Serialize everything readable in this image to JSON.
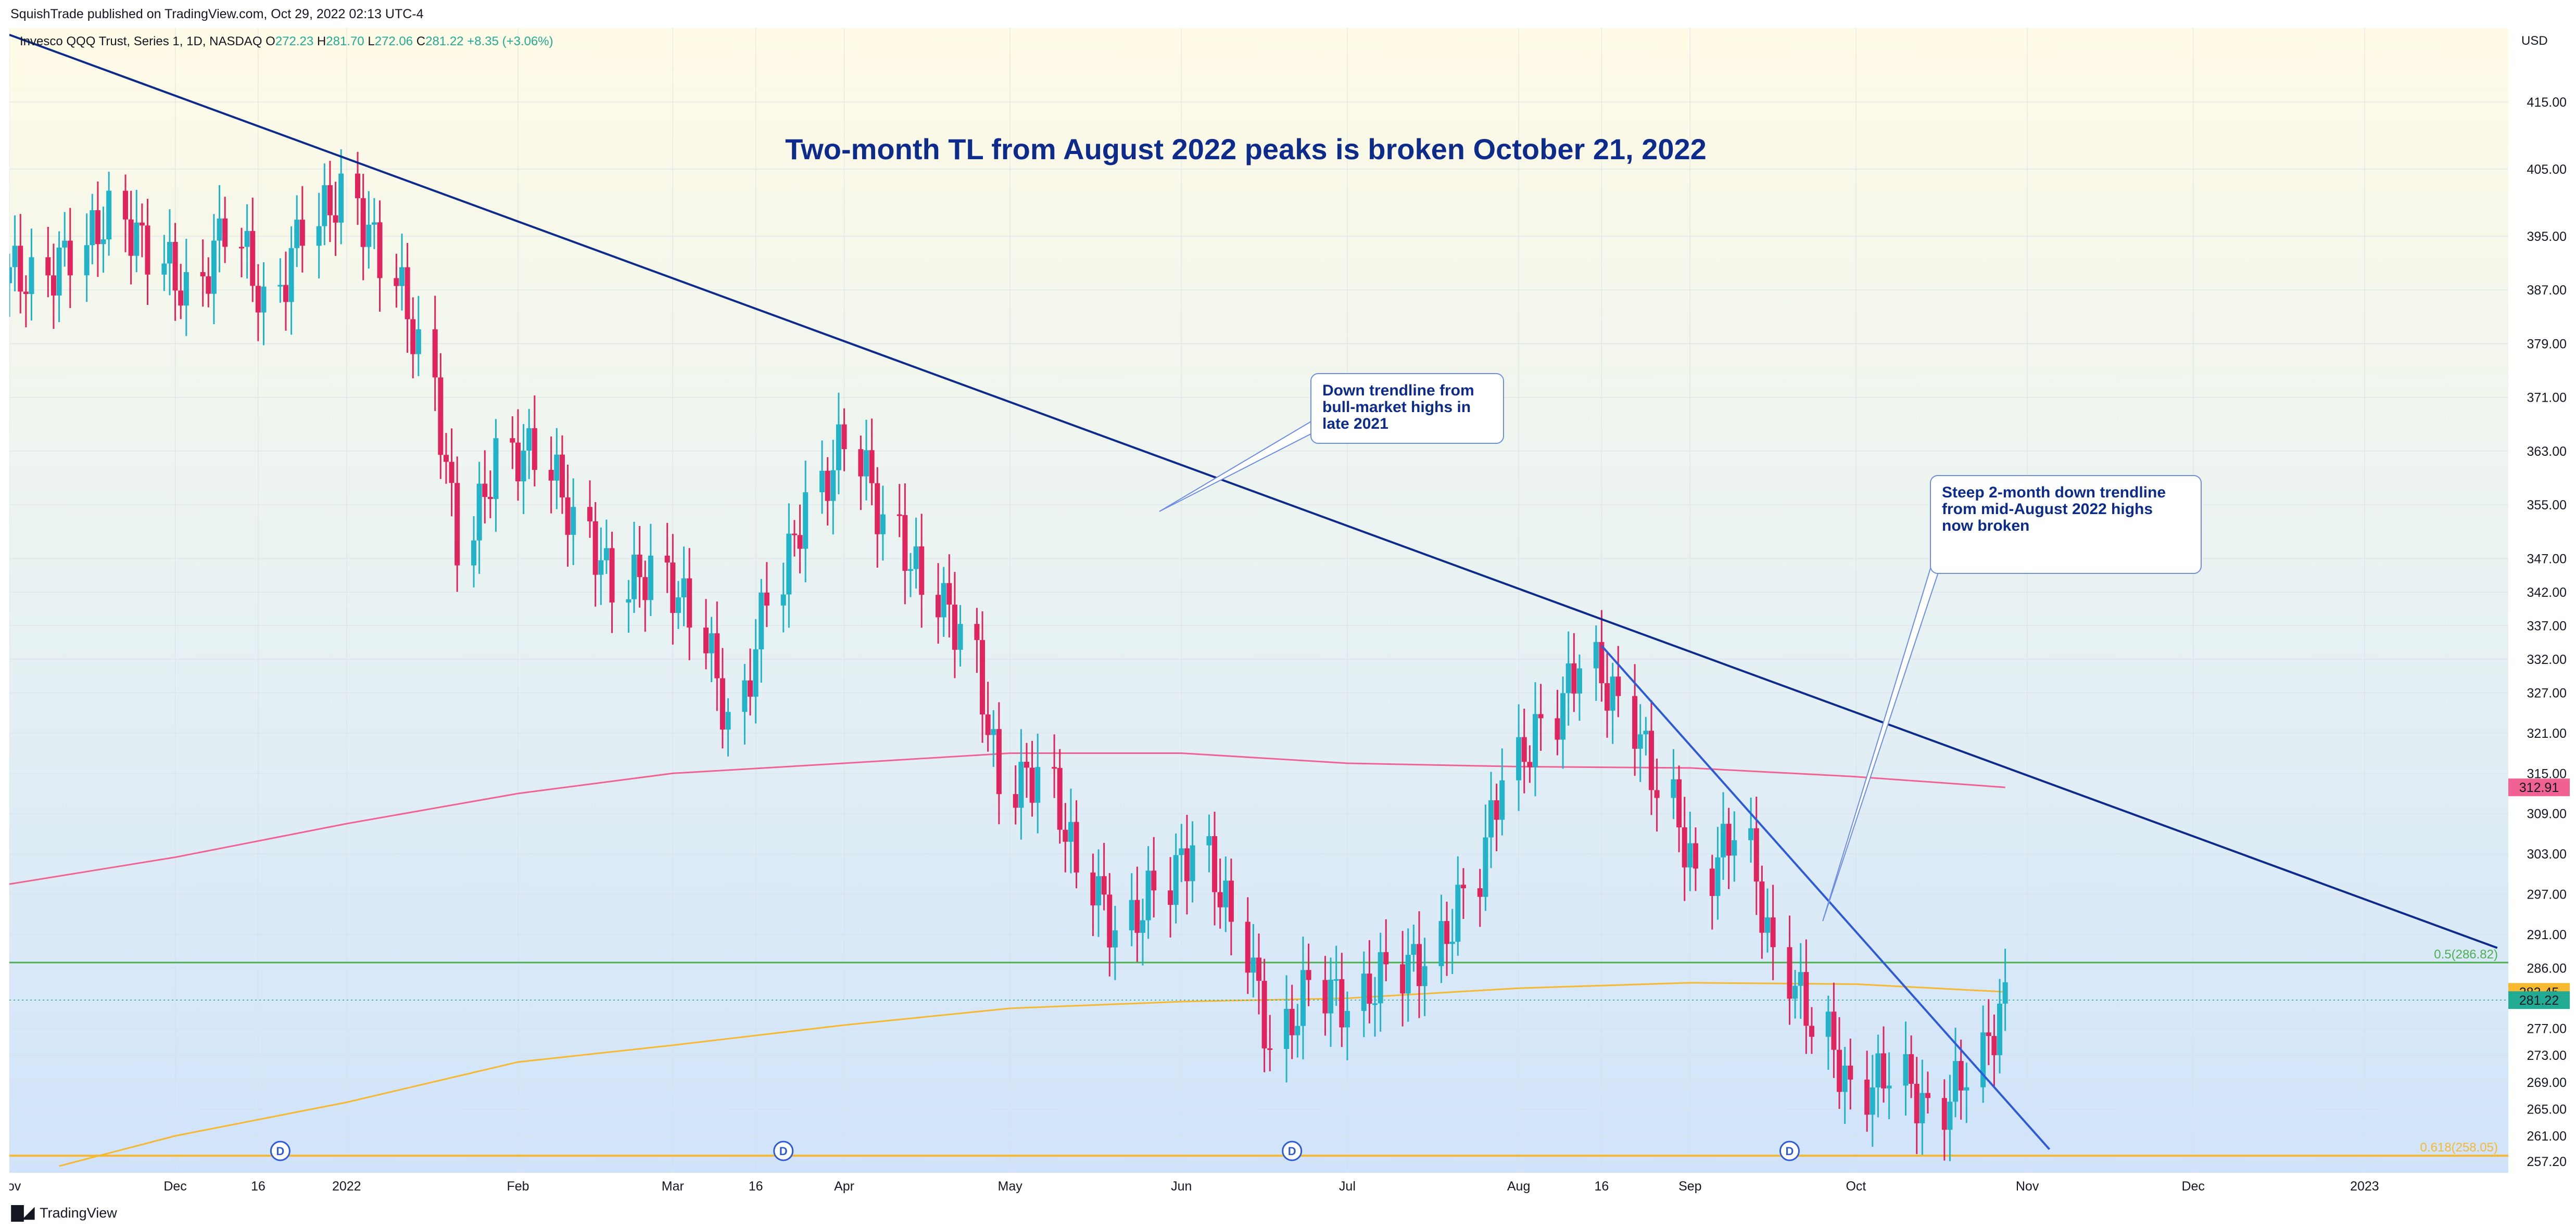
{
  "header": {
    "published": "SquishTrade published on TradingView.com, Oct 29, 2022 02:13 UTC-4"
  },
  "symbol": {
    "name": "Invesco QQQ Trust, Series 1, 1D, NASDAQ",
    "o_label": "O",
    "o_value": "272.23",
    "h_label": "H",
    "h_value": "281.70",
    "l_label": "L",
    "l_value": "272.06",
    "c_label": "C",
    "c_value": "281.22",
    "change": "+8.35 (+3.06%)"
  },
  "footer": {
    "brand": "TradingView",
    "logo_icon": "tradingview-logo-icon"
  },
  "chart_data": {
    "type": "candlestick",
    "title": "Two-month TL from August 2022 peaks is broken October 21, 2022",
    "currency": "USD",
    "y_ticks": [
      415,
      405,
      395,
      387,
      379,
      371,
      363,
      355,
      347,
      342,
      337,
      332,
      327,
      321,
      315,
      309,
      303,
      297,
      291,
      286,
      277,
      273,
      269,
      265,
      261,
      257.2
    ],
    "y_tick_labels": [
      "415.00",
      "405.00",
      "395.00",
      "387.00",
      "379.00",
      "371.00",
      "363.00",
      "355.00",
      "347.00",
      "342.00",
      "337.00",
      "332.00",
      "327.00",
      "321.00",
      "315.00",
      "309.00",
      "303.00",
      "297.00",
      "291.00",
      "286.00",
      "277.00",
      "273.00",
      "269.00",
      "265.00",
      "261.00",
      "257.20"
    ],
    "y_range": [
      255.5,
      426
    ],
    "x_range": [
      "2021-11-01",
      "2023-01-27"
    ],
    "x_ticks": [
      {
        "date": "2021-11-01",
        "label": "Nov"
      },
      {
        "date": "2021-12-01",
        "label": "Dec"
      },
      {
        "date": "2021-12-16",
        "label": "16"
      },
      {
        "date": "2022-01-01",
        "label": "2022"
      },
      {
        "date": "2022-02-01",
        "label": "Feb"
      },
      {
        "date": "2022-03-01",
        "label": "Mar"
      },
      {
        "date": "2022-03-16",
        "label": "16"
      },
      {
        "date": "2022-04-01",
        "label": "Apr"
      },
      {
        "date": "2022-05-01",
        "label": "May"
      },
      {
        "date": "2022-06-01",
        "label": "Jun"
      },
      {
        "date": "2022-07-01",
        "label": "Jul"
      },
      {
        "date": "2022-08-01",
        "label": "Aug"
      },
      {
        "date": "2022-08-16",
        "label": "16"
      },
      {
        "date": "2022-09-01",
        "label": "Sep"
      },
      {
        "date": "2022-10-01",
        "label": "Oct"
      },
      {
        "date": "2022-11-01",
        "label": "Nov"
      },
      {
        "date": "2022-12-01",
        "label": "Dec"
      },
      {
        "date": "2023-01-01",
        "label": "2023"
      }
    ],
    "dividend_markers": {
      "label": "D",
      "dates": [
        "2021-12-20",
        "2022-03-21",
        "2022-06-21",
        "2022-09-19"
      ]
    },
    "price_badges": [
      {
        "label": "312.91",
        "value": 312.91,
        "color": "#f06292"
      },
      {
        "label": "282.45",
        "value": 282.45,
        "color": "#f5b82e"
      },
      {
        "label": "281.22",
        "value": 281.22,
        "color": "#22ab94"
      }
    ],
    "fib_levels": [
      {
        "label": "0.5(286.82)",
        "value": 286.82,
        "color": "#4caf50"
      },
      {
        "label": "0.618(258.05)",
        "value": 258.05,
        "color": "#f5b82e"
      }
    ],
    "trendlines": [
      {
        "name": "Down trendline from bull-market highs",
        "color": "#0d2b8a",
        "points": [
          [
            "2021-11-01",
            425
          ],
          [
            "2023-01-25",
            289
          ]
        ]
      },
      {
        "name": "Steep 2-month down trendline",
        "color": "#2d5bd8",
        "points": [
          [
            "2022-08-16",
            334
          ],
          [
            "2022-11-05",
            259
          ]
        ]
      }
    ],
    "moving_averages": [
      {
        "color": "#f06292",
        "points": [
          [
            "2021-11-01",
            298.5
          ],
          [
            "2021-12-01",
            302.5
          ],
          [
            "2022-01-01",
            307.5
          ],
          [
            "2022-02-01",
            312
          ],
          [
            "2022-03-01",
            315
          ],
          [
            "2022-04-01",
            316.5
          ],
          [
            "2022-05-01",
            318
          ],
          [
            "2022-06-01",
            318
          ],
          [
            "2022-07-01",
            316.5
          ],
          [
            "2022-08-01",
            316
          ],
          [
            "2022-09-01",
            315.8
          ],
          [
            "2022-10-01",
            314.5
          ],
          [
            "2022-10-28",
            312.91
          ]
        ]
      },
      {
        "color": "#f5b82e",
        "points": [
          [
            "2021-11-10",
            256.5
          ],
          [
            "2021-12-01",
            261
          ],
          [
            "2022-01-01",
            266
          ],
          [
            "2022-02-01",
            272
          ],
          [
            "2022-03-01",
            274.5
          ],
          [
            "2022-04-01",
            277.5
          ],
          [
            "2022-05-01",
            280
          ],
          [
            "2022-06-01",
            281
          ],
          [
            "2022-07-01",
            281.5
          ],
          [
            "2022-08-01",
            283
          ],
          [
            "2022-09-01",
            283.8
          ],
          [
            "2022-10-01",
            283.6
          ],
          [
            "2022-10-28",
            282.45
          ]
        ]
      }
    ],
    "close_line": 281.22,
    "annotations": [
      {
        "text_lines": [
          "Down trendline from",
          "bull-market highs in",
          "late 2021"
        ],
        "pointer": [
          "2022-05-28",
          354
        ]
      },
      {
        "text_lines": [
          "Steep 2-month down trendline",
          "from mid-August 2022 highs",
          "now broken"
        ],
        "pointer": [
          "2022-09-25",
          293
        ]
      }
    ],
    "weekly_closes": [
      [
        "2021-11-01",
        388
      ],
      [
        "2021-11-08",
        393
      ],
      [
        "2021-11-15",
        398
      ],
      [
        "2021-11-22",
        393
      ],
      [
        "2021-11-29",
        386
      ],
      [
        "2021-12-06",
        397
      ],
      [
        "2021-12-13",
        384
      ],
      [
        "2021-12-20",
        397
      ],
      [
        "2021-12-27",
        401
      ],
      [
        "2022-01-03",
        392
      ],
      [
        "2022-01-10",
        378
      ],
      [
        "2022-01-17",
        349
      ],
      [
        "2022-01-24",
        362
      ],
      [
        "2022-01-31",
        363
      ],
      [
        "2022-02-07",
        352
      ],
      [
        "2022-02-14",
        343
      ],
      [
        "2022-02-21",
        345
      ],
      [
        "2022-02-28",
        339
      ],
      [
        "2022-03-07",
        322
      ],
      [
        "2022-03-14",
        342
      ],
      [
        "2022-03-21",
        355
      ],
      [
        "2022-03-28",
        365
      ],
      [
        "2022-04-04",
        352
      ],
      [
        "2022-04-11",
        343
      ],
      [
        "2022-04-18",
        336
      ],
      [
        "2022-04-25",
        313
      ],
      [
        "2022-05-02",
        315
      ],
      [
        "2022-05-09",
        301
      ],
      [
        "2022-05-16",
        291
      ],
      [
        "2022-05-23",
        298
      ],
      [
        "2022-05-30",
        304
      ],
      [
        "2022-06-06",
        293
      ],
      [
        "2022-06-13",
        274
      ],
      [
        "2022-06-20",
        284
      ],
      [
        "2022-06-27",
        280
      ],
      [
        "2022-07-04",
        286
      ],
      [
        "2022-07-11",
        287
      ],
      [
        "2022-07-18",
        297
      ],
      [
        "2022-07-25",
        315
      ],
      [
        "2022-08-01",
        322
      ],
      [
        "2022-08-08",
        332
      ],
      [
        "2022-08-15",
        325
      ],
      [
        "2022-08-22",
        313
      ],
      [
        "2022-08-29",
        299
      ],
      [
        "2022-09-05",
        307
      ],
      [
        "2022-09-12",
        287
      ],
      [
        "2022-09-19",
        278
      ],
      [
        "2022-09-26",
        267
      ],
      [
        "2022-10-03",
        271
      ],
      [
        "2022-10-10",
        264
      ],
      [
        "2022-10-17",
        271
      ],
      [
        "2022-10-24",
        281
      ]
    ]
  }
}
